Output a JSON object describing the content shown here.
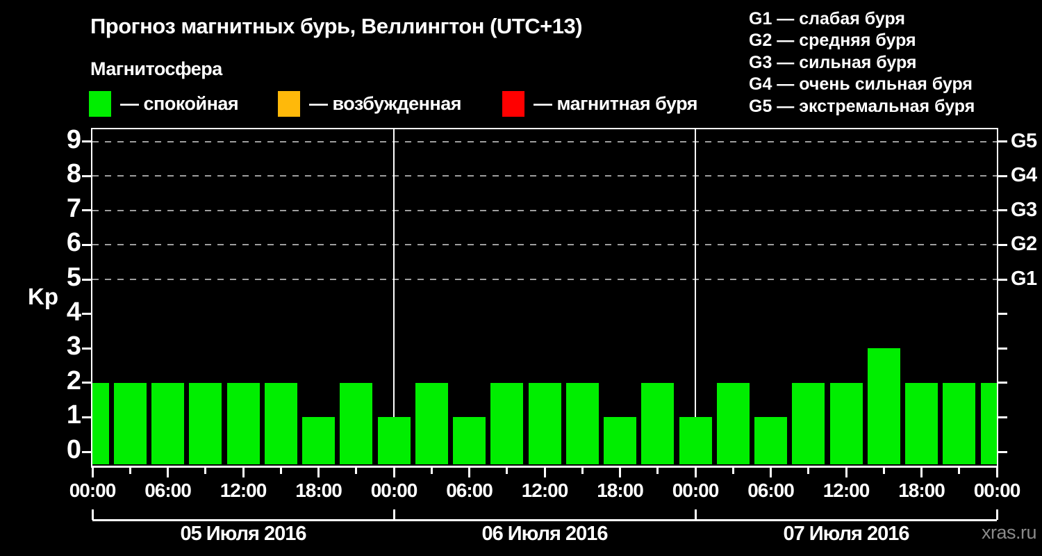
{
  "title": "Прогноз магнитных бурь, Веллингтон (UTC+13)",
  "subtitle": "Магнитосфера",
  "legend": {
    "items": [
      {
        "name": "quiet",
        "label": "— спокойная",
        "color": "#00ee00"
      },
      {
        "name": "excited",
        "label": "— возбужденная",
        "color": "#ffb90a"
      },
      {
        "name": "storm",
        "label": "— магнитная буря",
        "color": "#ff0000"
      }
    ],
    "positions_x": [
      128,
      400,
      723
    ]
  },
  "storm_scale_legend": [
    "G1 — слабая буря",
    "G2 — средняя буря",
    "G3 — сильная буря",
    "G4 — очень сильная буря",
    "G5 — экстремальная буря"
  ],
  "watermark": "xras.ru",
  "chart_data": {
    "type": "bar",
    "title": "Прогноз магнитных бурь, Веллингтон (UTC+13)",
    "ylabel": "Kp",
    "ylim": [
      0,
      9
    ],
    "hours_step": 3,
    "hours_total": 72,
    "values": [
      2,
      2,
      2,
      2,
      2,
      2,
      1,
      2,
      1,
      2,
      1,
      2,
      2,
      2,
      1,
      2,
      1,
      2,
      1,
      2,
      2,
      3,
      2,
      2,
      2
    ],
    "bar_color_quiet": "#00ee00",
    "bar_color_excited": "#ffb90a",
    "bar_color_storm": "#ff0000",
    "y_tick_labels": [
      "0",
      "1",
      "2",
      "3",
      "4",
      "5",
      "6",
      "7",
      "8",
      "9"
    ],
    "grid_levels": [
      5,
      6,
      7,
      8,
      9
    ],
    "grid_on": true,
    "right_axis_labels": [
      {
        "kp": 5,
        "label": "G1"
      },
      {
        "kp": 6,
        "label": "G2"
      },
      {
        "kp": 7,
        "label": "G3"
      },
      {
        "kp": 8,
        "label": "G4"
      },
      {
        "kp": 9,
        "label": "G5"
      }
    ],
    "x_tick_labels": [
      "00:00",
      "06:00",
      "12:00",
      "18:00",
      "00:00",
      "06:00",
      "12:00",
      "18:00",
      "00:00",
      "06:00",
      "12:00",
      "18:00",
      "00:00"
    ],
    "day_separator_hours": [
      24,
      48
    ],
    "days": [
      "05 Июля 2016",
      "06 Июля 2016",
      "07 Июля 2016"
    ]
  }
}
